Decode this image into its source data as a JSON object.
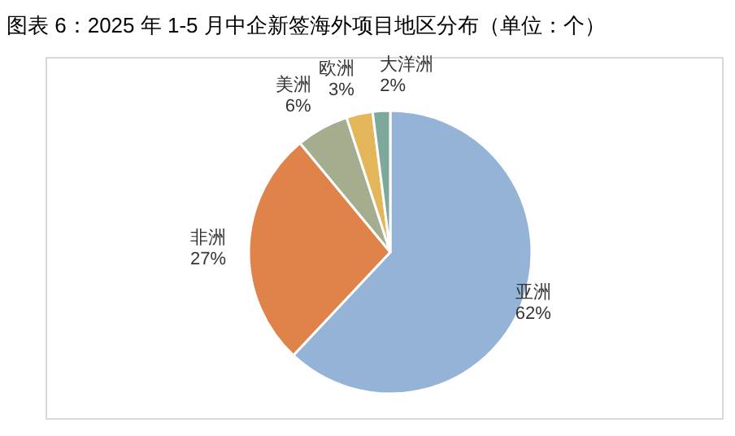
{
  "chart_data": {
    "type": "pie",
    "title": "图表 6：2025 年 1-5 月中企新签海外项目地区分布（单位：个）",
    "categories": [
      "亚洲",
      "非洲",
      "美洲",
      "欧洲",
      "大洋洲"
    ],
    "values": [
      62,
      27,
      6,
      3,
      2
    ],
    "colors": [
      "#95b3d7",
      "#e0834a",
      "#a5ad8f",
      "#e2b659",
      "#7fa89c"
    ],
    "value_labels": [
      "62%",
      "27%",
      "6%",
      "3%",
      "2%"
    ]
  }
}
